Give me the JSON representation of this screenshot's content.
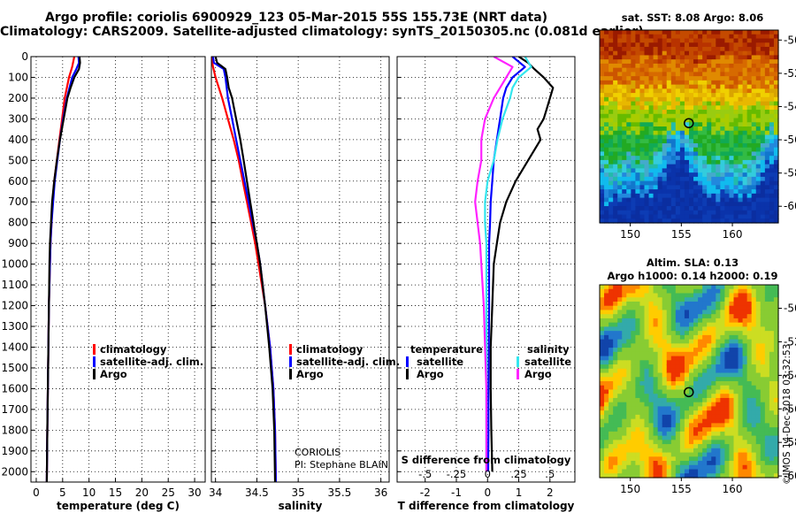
{
  "header": {
    "title_line1": "Argo profile: coriolis 6900929_123 05-Mar-2015 55S 155.73E (NRT data)",
    "title_line2": "Climatology: CARS2009. Satellite-adjusted climatology: synTS_20150305.nc (0.081d earlier)"
  },
  "colors": {
    "climatology": "#ff0000",
    "satellite": "#0000ff",
    "argo": "#000000",
    "satellite_salinity": "#33e6ee",
    "argo_salinity": "#ff22ff"
  },
  "credit": {
    "line1": "CORIOLIS",
    "line2": "PI: Stephane BLAIN"
  },
  "stamp": "©IMOS 14-Dec-2018 03:32:53",
  "chart_data": [
    {
      "type": "line",
      "xlabel": "temperature (deg C)",
      "xticks": [
        0,
        5,
        10,
        15,
        20,
        25,
        30
      ],
      "xlim": [
        -1,
        32
      ],
      "ylim": [
        0,
        2050
      ],
      "yticks": [
        0,
        100,
        200,
        300,
        400,
        500,
        600,
        700,
        800,
        900,
        1000,
        1100,
        1200,
        1300,
        1400,
        1500,
        1600,
        1700,
        1800,
        1900,
        2000
      ],
      "grid": true,
      "legend": [
        "climatology",
        "satellite-adj. clim.",
        "Argo"
      ],
      "legend_position": "lower-right",
      "series": [
        {
          "name": "climatology",
          "color": "#ff0000",
          "depth": [
            0,
            50,
            100,
            200,
            300,
            400,
            500,
            600,
            700,
            800,
            900,
            1000,
            1200,
            1400,
            1600,
            1800,
            2050
          ],
          "value": [
            7.2,
            6.8,
            6.2,
            5.4,
            4.9,
            4.4,
            3.9,
            3.4,
            3.1,
            2.9,
            2.7,
            2.6,
            2.4,
            2.3,
            2.2,
            2.1,
            2.0
          ]
        },
        {
          "name": "satellite-adj. clim.",
          "color": "#0000ff",
          "depth": [
            0,
            30,
            60,
            100,
            200,
            300,
            400,
            500,
            600,
            700,
            800,
            900,
            1000,
            1200,
            1400,
            1600,
            1800,
            2050
          ],
          "value": [
            8.0,
            8.1,
            7.6,
            6.8,
            5.8,
            5.1,
            4.5,
            4.0,
            3.5,
            3.2,
            2.9,
            2.7,
            2.6,
            2.4,
            2.3,
            2.2,
            2.1,
            2.0
          ]
        },
        {
          "name": "Argo",
          "color": "#000000",
          "depth": [
            0,
            30,
            60,
            100,
            150,
            200,
            300,
            400,
            500,
            600,
            700,
            800,
            900,
            1000,
            1200,
            1400,
            1600,
            1800,
            2050
          ],
          "value": [
            8.2,
            8.3,
            8.1,
            7.2,
            6.5,
            5.9,
            5.2,
            4.5,
            3.9,
            3.4,
            3.0,
            2.8,
            2.6,
            2.5,
            2.4,
            2.3,
            2.2,
            2.1,
            2.0
          ]
        }
      ]
    },
    {
      "type": "line",
      "xlabel": "salinity",
      "xticks": [
        34,
        34.5,
        35,
        35.5,
        36
      ],
      "xlim": [
        33.95,
        36.1
      ],
      "ylim": [
        0,
        2050
      ],
      "grid": true,
      "legend": [
        "climatology",
        "satellite-adj. clim.",
        "Argo"
      ],
      "legend_position": "lower-right",
      "series": [
        {
          "name": "climatology",
          "color": "#ff0000",
          "depth": [
            0,
            50,
            100,
            200,
            300,
            400,
            500,
            600,
            700,
            800,
            900,
            1000,
            1200,
            1400,
            1600,
            1800,
            2050
          ],
          "value": [
            33.95,
            33.97,
            34.0,
            34.08,
            34.15,
            34.22,
            34.28,
            34.33,
            34.38,
            34.43,
            34.48,
            34.52,
            34.6,
            34.66,
            34.7,
            34.72,
            34.73
          ]
        },
        {
          "name": "satellite-adj. clim.",
          "color": "#0000ff",
          "depth": [
            0,
            30,
            60,
            100,
            200,
            300,
            400,
            500,
            600,
            700,
            800,
            900,
            1000,
            1200,
            1400,
            1600,
            1800,
            2050
          ],
          "value": [
            33.97,
            33.98,
            34.1,
            34.12,
            34.15,
            34.2,
            34.25,
            34.3,
            34.35,
            34.4,
            34.45,
            34.5,
            34.54,
            34.6,
            34.66,
            34.7,
            34.72,
            34.73
          ]
        },
        {
          "name": "Argo",
          "color": "#000000",
          "depth": [
            0,
            30,
            60,
            100,
            150,
            200,
            300,
            400,
            500,
            600,
            700,
            800,
            900,
            1000,
            1200,
            1400,
            1600,
            1800,
            2050
          ],
          "value": [
            34.0,
            34.02,
            34.12,
            34.14,
            34.16,
            34.2,
            34.25,
            34.3,
            34.34,
            34.38,
            34.42,
            34.46,
            34.5,
            34.54,
            34.6,
            34.65,
            34.69,
            34.71,
            34.72
          ]
        }
      ]
    },
    {
      "type": "line",
      "xlabel": "T difference from climatology",
      "xticks": [
        -2,
        -1,
        0,
        1,
        2
      ],
      "xlim": [
        -2.9,
        2.8
      ],
      "top_xlabel": "S difference from climatology",
      "top_xticks": [
        -0.5,
        -0.25,
        0,
        0.25,
        0.5
      ],
      "top_xlim": [
        -0.725,
        0.7
      ],
      "ylim": [
        0,
        2050
      ],
      "grid": true,
      "legend_left_title": "temperature",
      "legend_left": [
        "satellite",
        "Argo"
      ],
      "legend_right_title": "salinity",
      "legend_right": [
        "satellite",
        "Argo"
      ],
      "series": [
        {
          "name": "satellite",
          "quantity": "T",
          "color": "#0000ff",
          "depth": [
            0,
            50,
            100,
            150,
            200,
            300,
            400,
            500,
            600,
            700,
            800,
            900,
            1000,
            1200,
            1400,
            1600,
            1800,
            2000
          ],
          "value": [
            0.8,
            1.2,
            0.8,
            0.6,
            0.5,
            0.4,
            0.3,
            0.2,
            0.15,
            0.1,
            0.08,
            0.05,
            0.05,
            0.05,
            0.04,
            0.03,
            0.03,
            0.02
          ]
        },
        {
          "name": "Argo",
          "quantity": "T",
          "color": "#000000",
          "depth": [
            0,
            30,
            60,
            100,
            150,
            200,
            250,
            300,
            350,
            400,
            450,
            500,
            600,
            700,
            800,
            900,
            1000,
            1200,
            1400,
            1600,
            1800,
            2000
          ],
          "value": [
            1.0,
            1.3,
            1.5,
            1.8,
            2.1,
            2.0,
            1.9,
            1.8,
            1.6,
            1.7,
            1.5,
            1.3,
            0.9,
            0.6,
            0.4,
            0.3,
            0.2,
            0.15,
            0.1,
            0.1,
            0.12,
            0.15
          ]
        },
        {
          "name": "satellite",
          "quantity": "S",
          "color": "#33e6ee",
          "depth": [
            0,
            50,
            100,
            150,
            200,
            300,
            400,
            500,
            600,
            700,
            800,
            900,
            1000,
            1200,
            1400,
            1600,
            1800,
            2000
          ],
          "value": [
            0.3,
            0.35,
            0.25,
            0.2,
            0.18,
            0.12,
            0.08,
            0.05,
            0.0,
            -0.02,
            -0.02,
            -0.01,
            -0.01,
            -0.01,
            -0.01,
            -0.01,
            -0.01,
            -0.01
          ]
        },
        {
          "name": "Argo",
          "quantity": "S",
          "color": "#ff22ff",
          "depth": [
            0,
            50,
            100,
            150,
            200,
            300,
            400,
            500,
            600,
            700,
            800,
            900,
            1000,
            1200,
            1400,
            1600,
            1800,
            2000
          ],
          "value": [
            0.05,
            0.2,
            0.15,
            0.1,
            0.05,
            -0.02,
            -0.05,
            -0.05,
            -0.08,
            -0.1,
            -0.08,
            -0.06,
            -0.05,
            -0.03,
            -0.02,
            -0.01,
            -0.01,
            -0.01
          ]
        }
      ]
    },
    {
      "type": "heatmap",
      "title": "sat. SST: 8.08 Argo: 8.06",
      "xticks": [
        150,
        155,
        160
      ],
      "yticks": [
        -50,
        -52,
        -54,
        -56,
        -58,
        -60
      ],
      "xlim": [
        147.0,
        164.5
      ],
      "ylim": [
        -61.0,
        -49.4
      ],
      "marker": {
        "lon": 155.73,
        "lat": -55.0
      }
    },
    {
      "type": "heatmap",
      "title_line1": "Altim. SLA: 0.13",
      "title_line2": "Argo h1000: 0.14 h2000: 0.19",
      "xticks": [
        150,
        155,
        160
      ],
      "yticks": [
        -50,
        -52,
        -54,
        -56,
        -58,
        -60
      ],
      "xlim": [
        147.0,
        164.5
      ],
      "ylim": [
        -60.1,
        -48.6
      ],
      "marker": {
        "lon": 155.73,
        "lat": -55.0
      }
    }
  ]
}
